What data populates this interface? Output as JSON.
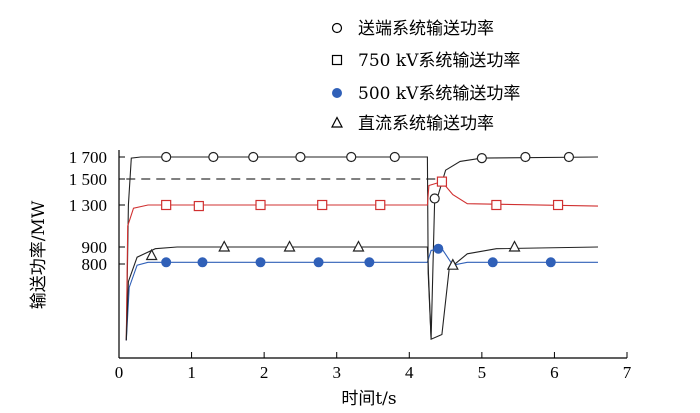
{
  "chart_data": {
    "type": "line",
    "xlabel": "时间t/s",
    "ylabel": "输送功率/MW",
    "xlim": [
      0,
      7
    ],
    "x_ticks": [
      0,
      1,
      2,
      3,
      4,
      5,
      6,
      7
    ],
    "y_ticks": [
      800,
      900,
      1300,
      1500,
      1700
    ],
    "y_tick_labels": [
      "800",
      "900",
      "1 300",
      "1 500",
      "1 700"
    ],
    "grid": false,
    "legend_position": "top-right",
    "reference_line": {
      "value": 1500,
      "x_start": 0.1,
      "x_end": 4.4,
      "style": "dashed"
    },
    "series": [
      {
        "name": "送端系统输送功率",
        "marker": "circle-open",
        "color": "#222222",
        "line": [
          [
            0.1,
            150
          ],
          [
            0.13,
            1300
          ],
          [
            0.17,
            1690
          ],
          [
            0.3,
            1700
          ],
          [
            4.25,
            1700
          ],
          [
            4.26,
            720
          ],
          [
            4.3,
            160
          ],
          [
            4.35,
            1350
          ],
          [
            4.4,
            1380
          ],
          [
            4.5,
            1580
          ],
          [
            4.7,
            1660
          ],
          [
            5.0,
            1690
          ],
          [
            6.6,
            1700
          ]
        ],
        "marker_x": [
          0.65,
          1.3,
          1.85,
          2.5,
          3.2,
          3.8,
          4.35,
          5.0,
          5.6,
          6.2
        ],
        "marker_y": [
          1700,
          1700,
          1700,
          1700,
          1700,
          1700,
          1350,
          1690,
          1700,
          1700
        ]
      },
      {
        "name": "750 kV系统输送功率",
        "marker": "square-open",
        "color": "#d03030",
        "line": [
          [
            0.1,
            150
          ],
          [
            0.12,
            1100
          ],
          [
            0.2,
            1270
          ],
          [
            0.4,
            1300
          ],
          [
            4.25,
            1300
          ],
          [
            4.27,
            1450
          ],
          [
            4.45,
            1480
          ],
          [
            4.6,
            1380
          ],
          [
            4.8,
            1310
          ],
          [
            6.6,
            1290
          ]
        ],
        "marker_x": [
          0.65,
          1.1,
          1.95,
          2.8,
          3.6,
          4.45,
          5.2,
          6.05
        ],
        "marker_y": [
          1300,
          1290,
          1300,
          1300,
          1300,
          1480,
          1300,
          1300
        ]
      },
      {
        "name": "500 kV系统输送功率",
        "marker": "circle-filled",
        "color": "#3060b8",
        "line": [
          [
            0.1,
            150
          ],
          [
            0.14,
            600
          ],
          [
            0.25,
            790
          ],
          [
            0.4,
            810
          ],
          [
            4.25,
            810
          ],
          [
            4.3,
            880
          ],
          [
            4.45,
            890
          ],
          [
            4.6,
            790
          ],
          [
            4.8,
            810
          ],
          [
            6.6,
            810
          ]
        ],
        "marker_x": [
          0.65,
          1.15,
          1.95,
          2.75,
          3.45,
          4.4,
          5.15,
          5.95
        ],
        "marker_y": [
          810,
          810,
          810,
          810,
          810,
          890,
          810,
          810
        ]
      },
      {
        "name": "直流系统输送功率",
        "marker": "triangle-open",
        "color": "#222222",
        "line": [
          [
            0.1,
            150
          ],
          [
            0.13,
            650
          ],
          [
            0.25,
            840
          ],
          [
            0.5,
            890
          ],
          [
            0.8,
            900
          ],
          [
            4.25,
            900
          ],
          [
            4.3,
            160
          ],
          [
            4.45,
            200
          ],
          [
            4.55,
            760
          ],
          [
            4.8,
            860
          ],
          [
            5.2,
            890
          ],
          [
            6.6,
            900
          ]
        ],
        "marker_x": [
          0.45,
          1.45,
          2.35,
          3.3,
          4.6,
          5.45
        ],
        "marker_y": [
          850,
          900,
          900,
          900,
          790,
          900
        ]
      }
    ]
  }
}
